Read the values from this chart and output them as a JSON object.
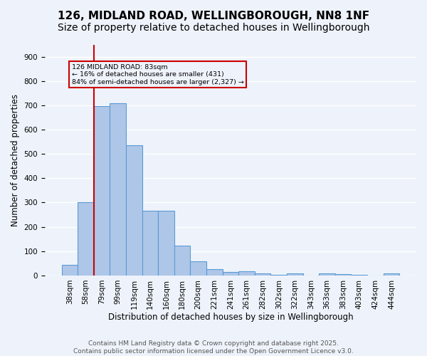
{
  "title_line1": "126, MIDLAND ROAD, WELLINGBOROUGH, NN8 1NF",
  "title_line2": "Size of property relative to detached houses in Wellingborough",
  "xlabel": "Distribution of detached houses by size in Wellingborough",
  "ylabel": "Number of detached properties",
  "categories": [
    "38sqm",
    "58sqm",
    "79sqm",
    "99sqm",
    "119sqm",
    "140sqm",
    "160sqm",
    "180sqm",
    "200sqm",
    "221sqm",
    "241sqm",
    "261sqm",
    "282sqm",
    "302sqm",
    "322sqm",
    "343sqm",
    "363sqm",
    "383sqm",
    "403sqm",
    "424sqm",
    "444sqm"
  ],
  "values": [
    45,
    300,
    697,
    707,
    537,
    265,
    265,
    122,
    57,
    25,
    15,
    18,
    8,
    4,
    8,
    0,
    10,
    5,
    2,
    0,
    8
  ],
  "bar_color": "#aec6e8",
  "bar_edge_color": "#5b9bd5",
  "background_color": "#eef3fb",
  "grid_color": "#ffffff",
  "vline_color": "#cc0000",
  "annotation_text": "126 MIDLAND ROAD: 83sqm\n← 16% of detached houses are smaller (431)\n84% of semi-detached houses are larger (2,327) →",
  "annotation_box_edgecolor": "#cc0000",
  "ylim": [
    0,
    950
  ],
  "yticks": [
    0,
    100,
    200,
    300,
    400,
    500,
    600,
    700,
    800,
    900
  ],
  "footer_text": "Contains HM Land Registry data © Crown copyright and database right 2025.\nContains public sector information licensed under the Open Government Licence v3.0.",
  "title_fontsize": 11,
  "subtitle_fontsize": 10,
  "label_fontsize": 8.5,
  "tick_fontsize": 7.5,
  "footer_fontsize": 6.5
}
